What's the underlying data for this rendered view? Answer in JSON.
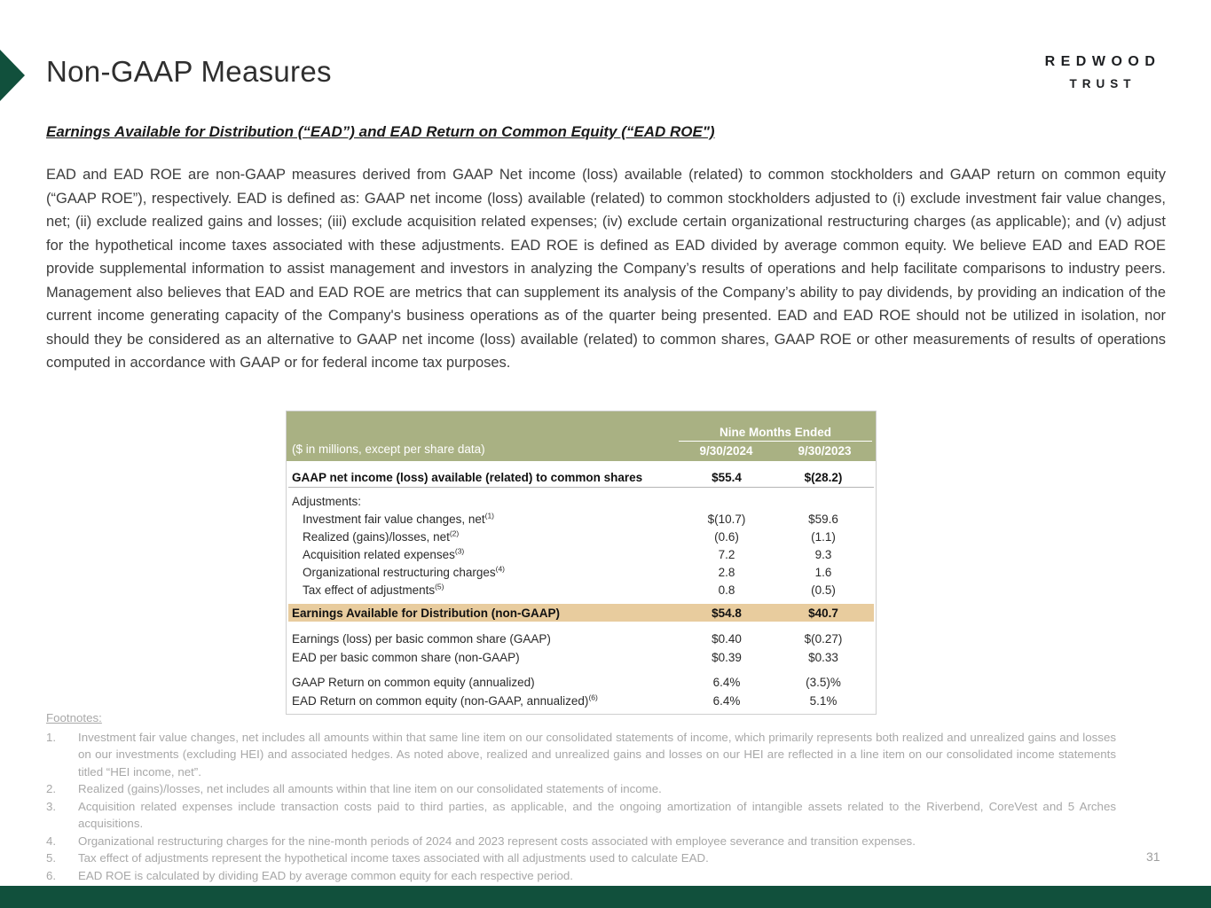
{
  "slide": {
    "title": "Non-GAAP Measures",
    "page_number": "31",
    "logo": {
      "line1": "REDWOOD",
      "line2": "TRUST"
    }
  },
  "content": {
    "heading": "Earnings Available for Distribution (“EAD”) and EAD Return on Common Equity (“EAD ROE\")",
    "paragraph": "EAD and EAD ROE are non-GAAP measures derived from GAAP Net income (loss) available (related) to common stockholders and GAAP return on common equity (“GAAP ROE”), respectively. EAD is defined as: GAAP net income (loss) available (related) to common stockholders adjusted to (i) exclude investment fair value changes, net; (ii) exclude realized gains and losses; (iii) exclude acquisition related expenses; (iv) exclude certain organizational restructuring charges (as applicable); and (v) adjust for the hypothetical income taxes associated with these adjustments. EAD ROE is defined as EAD divided by average common equity. We believe EAD and EAD ROE provide supplemental information to assist management and investors in analyzing the Company’s results of operations and help facilitate comparisons to industry peers. Management also believes that EAD and EAD ROE are metrics that can supplement its analysis of the Company’s ability to pay dividends, by providing an indication of the current income generating capacity of the Company's business operations as of the quarter being presented. EAD and EAD ROE should not be utilized in isolation, nor should they be considered as an alternative to GAAP net income (loss) available (related) to common shares, GAAP ROE or other measurements of results of operations computed in accordance with GAAP or for federal income tax purposes."
  },
  "table": {
    "unit_label": "($ in millions, except per share data)",
    "group_header": "Nine Months Ended",
    "col_headers": [
      "9/30/2024",
      "9/30/2023"
    ],
    "rows": [
      {
        "label": "GAAP net income (loss) available (related) to common shares",
        "sup": "",
        "values": [
          "$55.4",
          "$(28.2)"
        ]
      },
      {
        "label": "Adjustments:",
        "sup": "",
        "values": [
          "",
          ""
        ]
      },
      {
        "label": "Investment fair value changes, net",
        "sup": "(1)",
        "values": [
          "$(10.7)",
          "$59.6"
        ]
      },
      {
        "label": "Realized (gains)/losses, net",
        "sup": "(2)",
        "values": [
          "(0.6)",
          "(1.1)"
        ]
      },
      {
        "label": "Acquisition related expenses",
        "sup": "(3)",
        "values": [
          "7.2",
          "9.3"
        ]
      },
      {
        "label": "Organizational restructuring charges",
        "sup": "(4)",
        "values": [
          "2.8",
          "1.6"
        ]
      },
      {
        "label": "Tax effect of adjustments",
        "sup": "(5)",
        "values": [
          "0.8",
          "(0.5)"
        ]
      },
      {
        "label": "Earnings Available for Distribution (non-GAAP)",
        "sup": "",
        "values": [
          "$54.8",
          "$40.7"
        ]
      },
      {
        "label": "Earnings (loss) per basic common share (GAAP)",
        "sup": "",
        "values": [
          "$0.40",
          "$(0.27)"
        ]
      },
      {
        "label": "EAD per basic common share (non-GAAP)",
        "sup": "",
        "values": [
          "$0.39",
          "$0.33"
        ]
      },
      {
        "label": "GAAP Return on common equity (annualized)",
        "sup": "",
        "values": [
          "6.4%",
          "(3.5)%"
        ]
      },
      {
        "label": "EAD Return on common equity (non-GAAP, annualized)",
        "sup": "(6)",
        "values": [
          "6.4%",
          "5.1%"
        ]
      }
    ]
  },
  "footnotes": {
    "heading": "Footnotes:",
    "items": [
      {
        "num": "1.",
        "text": "Investment fair value changes, net includes all amounts within that same line item on our consolidated statements of income, which primarily represents both realized and unrealized gains and losses on our investments (excluding HEI) and associated hedges. As noted above, realized and unrealized gains and losses on our HEI are reflected in a line item on our consolidated income statements titled “HEI income, net”."
      },
      {
        "num": "2.",
        "text": "Realized (gains)/losses, net includes all amounts within that line item on our consolidated statements of income."
      },
      {
        "num": "3.",
        "text": "Acquisition related expenses include transaction costs paid to third parties, as applicable, and the ongoing amortization of intangible assets related to the Riverbend, CoreVest and 5 Arches acquisitions."
      },
      {
        "num": "4.",
        "text": "Organizational restructuring charges for the nine-month periods of 2024 and 2023 represent costs associated with employee severance and transition expenses."
      },
      {
        "num": "5.",
        "text": "Tax effect of adjustments represent the hypothetical income taxes associated with all adjustments used to calculate EAD."
      },
      {
        "num": "6.",
        "text": "EAD ROE is calculated by dividing EAD by average common equity for each respective period."
      }
    ]
  },
  "colors": {
    "accent_green": "#11503C",
    "table_header_bg": "#A9B183",
    "highlight_bg": "#E8CC9E",
    "footnote_gray": "#A8A8A8"
  }
}
